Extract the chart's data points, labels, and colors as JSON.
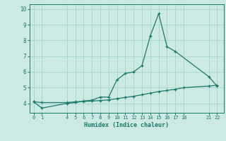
{
  "xlabel": "Humidex (Indice chaleur)",
  "ylabel": "",
  "background_color": "#cce9e4",
  "grid_color": "#aad8d0",
  "line_color": "#1a7a6a",
  "x_ticks": [
    0,
    1,
    4,
    5,
    6,
    7,
    8,
    9,
    10,
    11,
    12,
    13,
    14,
    15,
    16,
    17,
    18,
    21,
    22
  ],
  "y_ticks": [
    4,
    5,
    6,
    7,
    8,
    9,
    10
  ],
  "ylim": [
    3.4,
    10.3
  ],
  "xlim": [
    -0.5,
    22.8
  ],
  "line1_x": [
    0,
    1,
    4,
    5,
    6,
    7,
    8,
    9,
    10,
    11,
    12,
    13,
    14,
    15,
    16,
    17,
    21,
    22
  ],
  "line1_y": [
    4.1,
    3.7,
    4.0,
    4.05,
    4.15,
    4.2,
    4.4,
    4.4,
    5.5,
    5.9,
    6.0,
    6.4,
    8.3,
    9.7,
    7.6,
    7.3,
    5.7,
    5.1
  ],
  "line2_x": [
    0,
    1,
    4,
    5,
    6,
    7,
    8,
    9,
    10,
    11,
    12,
    13,
    14,
    15,
    16,
    17,
    18,
    21,
    22
  ],
  "line2_y": [
    4.1,
    4.05,
    4.05,
    4.1,
    4.12,
    4.15,
    4.18,
    4.22,
    4.3,
    4.38,
    4.45,
    4.55,
    4.65,
    4.75,
    4.82,
    4.9,
    5.0,
    5.1,
    5.15
  ]
}
